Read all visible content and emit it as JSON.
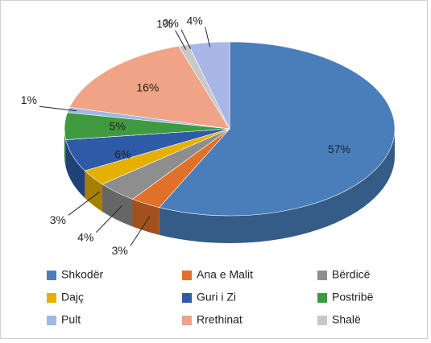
{
  "chart_data": {
    "type": "pie3d",
    "categories": [
      "Shkodër",
      "Ana e Malit",
      "Bërdicë",
      "Dajç",
      "Guri i Zi",
      "Postribë",
      "Pult",
      "Rrethinat",
      "Shalë",
      null,
      null
    ],
    "values": [
      57,
      3,
      4,
      3,
      6,
      5,
      1,
      16,
      1,
      0,
      4
    ],
    "value_labels": [
      "57%",
      "3%",
      "4%",
      "3%",
      "6%",
      "5%",
      "1%",
      "16%",
      "1%",
      "0%",
      "4%"
    ],
    "colors": [
      "#4a7ebb",
      "#e0702a",
      "#8e8e8e",
      "#e6b000",
      "#2e5aa8",
      "#3f9a3f",
      "#9db9e6",
      "#f0a386",
      "#c8c8c8",
      "#7f9fd8",
      "#a9b7e8"
    ]
  }
}
